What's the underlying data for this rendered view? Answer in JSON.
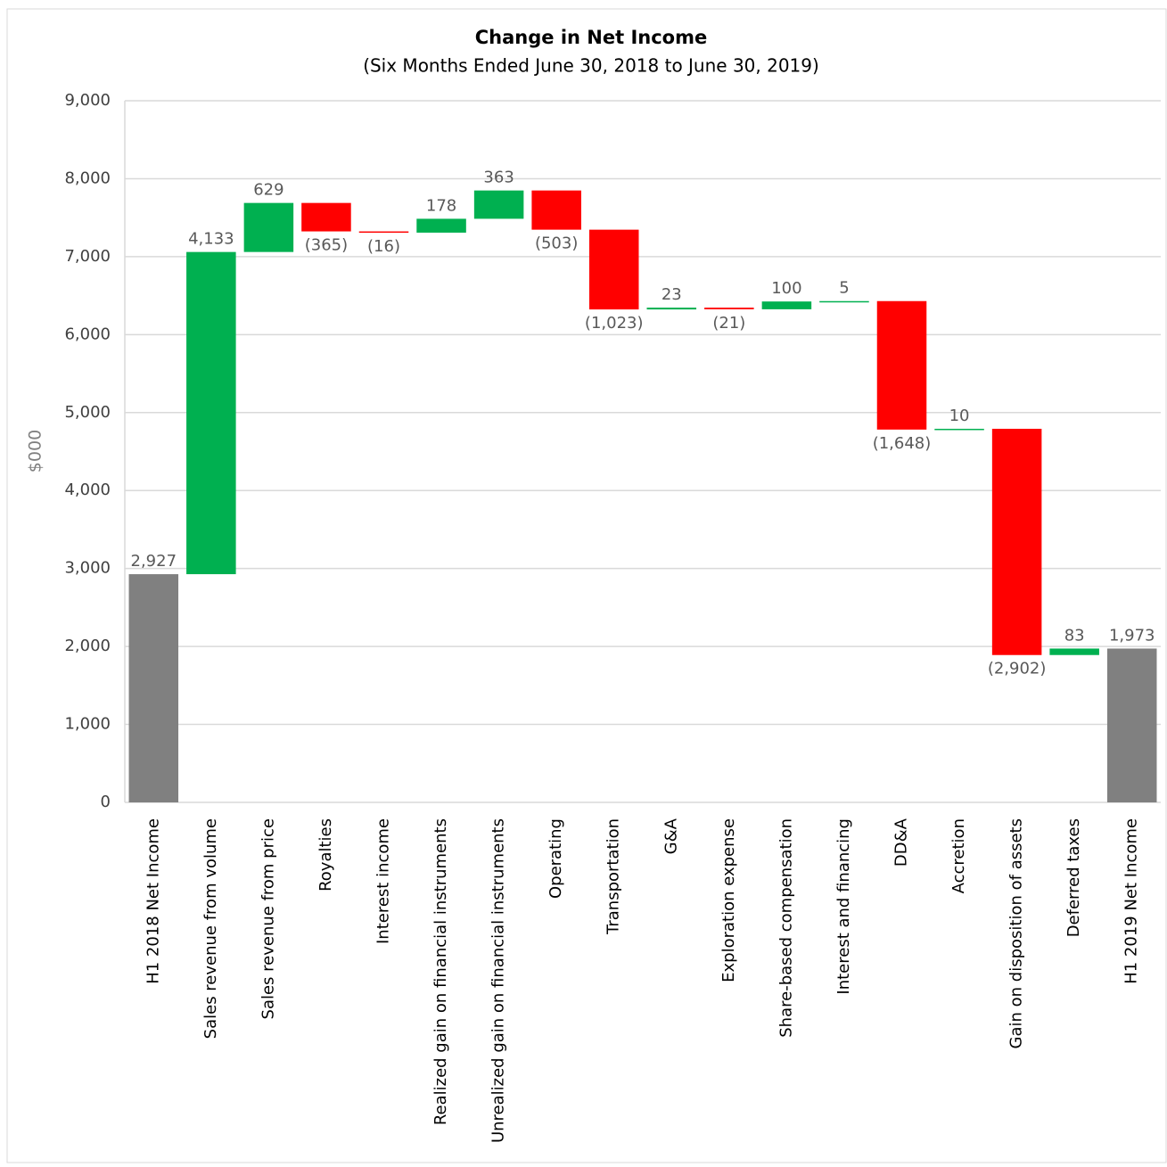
{
  "chart_data": {
    "type": "waterfall",
    "title": "Change in Net Income",
    "subtitle": "(Six Months Ended June 30, 2018 to June 30, 2019)",
    "ylabel": "$000",
    "categories": [
      "H1 2018 Net Income",
      "Sales revenue from volume",
      "Sales revenue from price",
      "Royalties",
      "Interest income",
      "Realized gain on financial instruments",
      "Unrealized gain on financial instruments",
      "Operating",
      "Transportation",
      "G&A",
      "Exploration expense",
      "Share-based compensation",
      "Interest and financing",
      "DD&A",
      "Accretion",
      "Gain on disposition of assets",
      "Deferred taxes",
      "H1 2019 Net Income"
    ],
    "values": [
      2927,
      4133,
      629,
      -365,
      -16,
      178,
      363,
      -503,
      -1023,
      23,
      -21,
      100,
      5,
      -1648,
      10,
      -2902,
      83,
      1973
    ],
    "value_labels": [
      "2,927",
      "4,133",
      "629",
      "(365)",
      "(16)",
      "178",
      "363",
      "(503)",
      "(1,023)",
      "23",
      "(21)",
      "100",
      "5",
      "(1,648)",
      "10",
      "(2,902)",
      "83",
      "1,973"
    ],
    "totals": [
      true,
      false,
      false,
      false,
      false,
      false,
      false,
      false,
      false,
      false,
      false,
      false,
      false,
      false,
      false,
      false,
      false,
      true
    ],
    "increase_color": "#00b050",
    "decrease_color": "#ff0000",
    "total_color": "#808080",
    "ylim": [
      0,
      9000
    ],
    "yticks": [
      0,
      {
        "value": 1000,
        "label": "1,000"
      },
      {
        "value": 2000,
        "label": "2,000"
      },
      {
        "value": 3000,
        "label": "3,000"
      },
      {
        "value": 4000,
        "label": "4,000"
      },
      {
        "value": 5000,
        "label": "5,000"
      },
      {
        "value": 6000,
        "label": "6,000"
      },
      {
        "value": 7000,
        "label": "7,000"
      },
      {
        "value": 8000,
        "label": "8,000"
      },
      {
        "value": 9000,
        "label": "9,000"
      }
    ],
    "grid": true
  }
}
